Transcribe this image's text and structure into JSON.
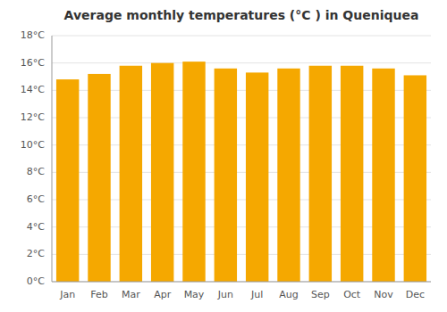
{
  "chart_data": {
    "type": "bar",
    "title": "Average monthly temperatures (°C ) in Queniquea",
    "categories": [
      "Jan",
      "Feb",
      "Mar",
      "Apr",
      "May",
      "Jun",
      "Jul",
      "Aug",
      "Sep",
      "Oct",
      "Nov",
      "Dec"
    ],
    "values": [
      14.8,
      15.2,
      15.8,
      16.0,
      16.1,
      15.6,
      15.3,
      15.6,
      15.8,
      15.8,
      15.6,
      15.1
    ],
    "color": "#F5A800",
    "ylim": [
      0,
      18
    ],
    "yticks": [
      {
        "value": 0,
        "label": "0°C"
      },
      {
        "value": 2,
        "label": "2°C"
      },
      {
        "value": 4,
        "label": "4°C"
      },
      {
        "value": 6,
        "label": "6°C"
      },
      {
        "value": 8,
        "label": "8°C"
      },
      {
        "value": 10,
        "label": "10°C"
      },
      {
        "value": 12,
        "label": "12°C"
      },
      {
        "value": 14,
        "label": "14°C"
      },
      {
        "value": 16,
        "label": "16°C"
      },
      {
        "value": 18,
        "label": "18°C"
      }
    ],
    "grid": true
  }
}
